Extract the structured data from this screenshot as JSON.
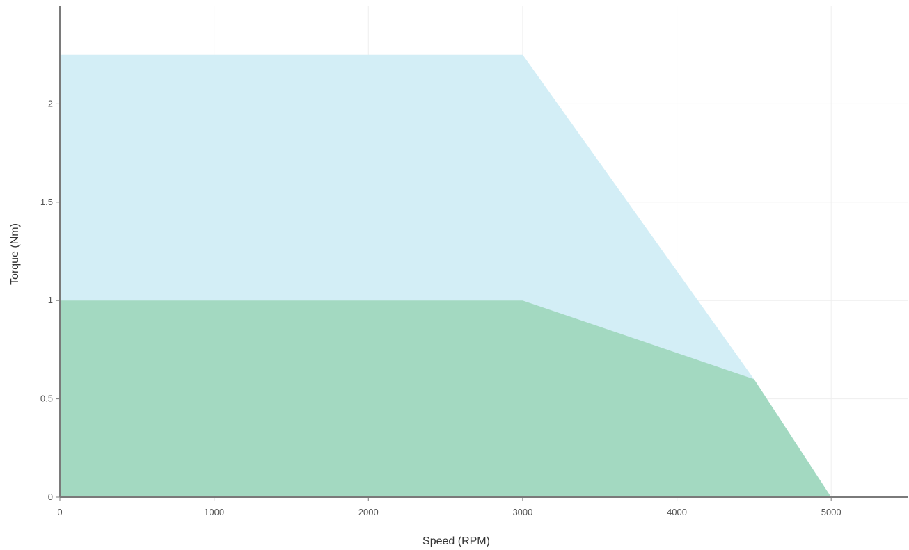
{
  "chart_data": {
    "type": "area",
    "xlabel": "Speed (RPM)",
    "ylabel": "Torque (Nm)",
    "xlim": [
      0,
      5500
    ],
    "ylim": [
      0,
      2.5
    ],
    "x_ticks": [
      0,
      1000,
      2000,
      3000,
      4000,
      5000
    ],
    "y_ticks": [
      0,
      0.5,
      1,
      1.5,
      2
    ],
    "x_tick_labels": [
      "0",
      "1000",
      "2000",
      "3000",
      "4000",
      "5000"
    ],
    "y_tick_labels": [
      "0",
      "0.5",
      "1",
      "1.5",
      "2"
    ],
    "grid": true,
    "series": [
      {
        "color": "#d3eef6",
        "points": [
          [
            0,
            2.25
          ],
          [
            3000,
            2.25
          ],
          [
            4500,
            0.6
          ],
          [
            5000,
            0
          ]
        ]
      },
      {
        "color": "#a3d9c1",
        "points": [
          [
            0,
            1
          ],
          [
            3000,
            1
          ],
          [
            4500,
            0.6
          ],
          [
            5000,
            0
          ]
        ]
      }
    ]
  }
}
